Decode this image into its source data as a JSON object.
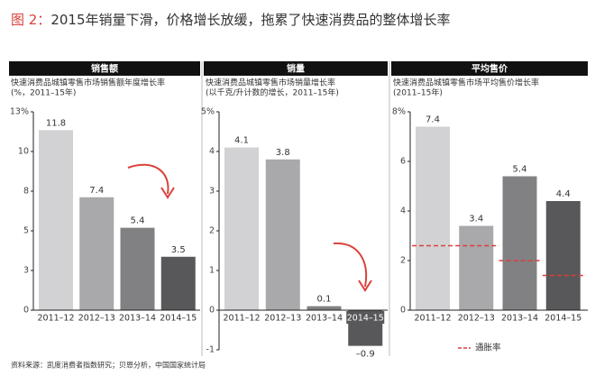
{
  "figure_label": "图 2：",
  "title": "2015年销量下滑，价格增长放缓，拖累了快速消费品的整体增长率",
  "source": "资料来源：凯度消费者指数研究；贝恩分析，中国国家统计局",
  "chart_data": [
    {
      "type": "bar",
      "title": "销售额",
      "subtitle": "快速消费品城镇零售市场销售额年度增长率",
      "note": "(%，2011–15年)",
      "categories": [
        "2011–12",
        "2012–13",
        "2013–14",
        "2014–15"
      ],
      "values": [
        11.8,
        7.4,
        5.4,
        3.5
      ],
      "colors": [
        "#d2d2d4",
        "#a9a9ac",
        "#818184",
        "#58585b"
      ],
      "ylim": [
        0,
        13
      ],
      "yticks": [
        0,
        {
          "value": 2.6,
          "label": "3"
        },
        {
          "value": 5.2,
          "label": "5"
        },
        {
          "value": 7.8,
          "label": "8"
        },
        {
          "value": 10.4,
          "label": "10"
        },
        {
          "value": 13,
          "label": "13%"
        }
      ]
    },
    {
      "type": "bar",
      "title": "销量",
      "subtitle": "快速消费品城镇零售市场销量增长率",
      "note": "(以千克/升计数的增长，2011–15年)",
      "categories": [
        "2011–12",
        "2012–13",
        "2013–14",
        "2014–15"
      ],
      "values": [
        4.1,
        3.8,
        0.1,
        -0.9
      ],
      "value_labels": [
        "4.1",
        "3.8",
        "0.1",
        "–0.9"
      ],
      "colors": [
        "#d2d2d4",
        "#a9a9ac",
        "#818184",
        "#58585b"
      ],
      "ylim": [
        -1,
        5
      ],
      "yticks": [
        -1,
        0,
        1,
        2,
        3,
        4,
        {
          "value": 5,
          "label": "5%"
        }
      ]
    },
    {
      "type": "bar",
      "title": "平均售价",
      "subtitle": "快速消费品城镇零售市场平均售价增长率",
      "note": "(2011–15年)",
      "categories": [
        "2011–12",
        "2012–13",
        "2013–14",
        "2014–15"
      ],
      "values": [
        7.4,
        3.4,
        5.4,
        4.4
      ],
      "colors": [
        "#d2d2d4",
        "#a9a9ac",
        "#818184",
        "#58585b"
      ],
      "ylim": [
        0,
        8
      ],
      "yticks": [
        0,
        2,
        4,
        6,
        {
          "value": 8,
          "label": "8%"
        }
      ],
      "lines": [
        {
          "name": "通胀率",
          "color": "#d9413a",
          "values": [
            2.6,
            2.6,
            2.0,
            1.4
          ]
        }
      ]
    }
  ]
}
